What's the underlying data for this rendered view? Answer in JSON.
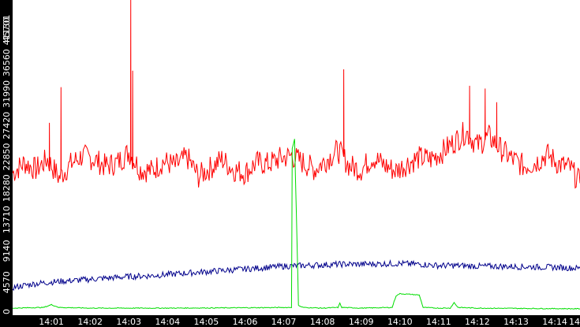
{
  "chart_data": {
    "type": "line",
    "title": "",
    "xlabel": "",
    "ylabel": "",
    "x_tick_labels": [
      "14:01",
      "14:02",
      "14:03",
      "14:04",
      "14:05",
      "14:06",
      "14:07",
      "14:08",
      "14:09",
      "14:10",
      "14:11",
      "14:12",
      "14:13",
      "14:14",
      "14"
    ],
    "y_tick_labels": [
      "0",
      "4570",
      "9140",
      "13710",
      "18280",
      "22850",
      "27420",
      "31990",
      "36560",
      "41130",
      "45701"
    ],
    "y_tick_values": [
      0,
      4570,
      9140,
      13710,
      18280,
      22850,
      27420,
      31990,
      36560,
      41130,
      45701
    ],
    "ylim": [
      0,
      45701
    ],
    "xlim": [
      0,
      14.65
    ],
    "grid": false,
    "legend": "none",
    "colors": {
      "red": "#ff0000",
      "blue": "#00008b",
      "green": "#00dd00",
      "axis_band": "#000000",
      "tick_text": "#ffffff"
    },
    "series": [
      {
        "color": "#ff0000",
        "x": [
          0,
          0.3,
          0.6,
          0.9,
          1.2,
          1.5,
          1.8,
          2.1,
          2.4,
          2.7,
          3.0,
          3.3,
          3.6,
          3.9,
          4.2,
          4.5,
          4.8,
          5.1,
          5.4,
          5.7,
          6.0,
          6.3,
          6.6,
          6.9,
          7.2,
          7.5,
          7.8,
          8.1,
          8.4,
          8.7,
          9.0,
          9.3,
          9.6,
          9.9,
          10.2,
          10.5,
          10.8,
          11.1,
          11.4,
          11.7,
          12.0,
          12.3,
          12.6,
          12.9,
          13.2,
          13.5,
          13.8,
          14.1,
          14.4,
          14.65
        ],
        "values": [
          20500,
          22000,
          21000,
          22500,
          19800,
          21800,
          23000,
          22500,
          21500,
          22000,
          23500,
          21000,
          20800,
          22200,
          21500,
          22800,
          20000,
          21200,
          22500,
          21000,
          20500,
          22000,
          21800,
          22600,
          23000,
          22000,
          21000,
          22400,
          23800,
          21500,
          21000,
          22800,
          21600,
          20800,
          21900,
          22700,
          22500,
          23600,
          25000,
          26500,
          24500,
          25800,
          24000,
          22500,
          21500,
          22000,
          23200,
          21800,
          21200,
          19000
        ],
        "spikes": [
          {
            "x": 0.95,
            "y": 27800
          },
          {
            "x": 1.25,
            "y": 33000
          },
          {
            "x": 3.05,
            "y": 46000
          },
          {
            "x": 3.1,
            "y": 35400
          },
          {
            "x": 8.55,
            "y": 35600
          },
          {
            "x": 11.8,
            "y": 33200
          },
          {
            "x": 12.2,
            "y": 32800
          },
          {
            "x": 12.5,
            "y": 30800
          }
        ]
      },
      {
        "color": "#00008b",
        "x": [
          0,
          0.5,
          1,
          1.5,
          2,
          2.5,
          3,
          3.5,
          4,
          4.5,
          5,
          5.5,
          6,
          6.5,
          7,
          7.5,
          8,
          8.5,
          9,
          9.5,
          10,
          10.5,
          11,
          11.5,
          12,
          12.5,
          13,
          13.5,
          14,
          14.65
        ],
        "values": [
          3800,
          4300,
          4600,
          4800,
          5000,
          5200,
          5400,
          5500,
          5700,
          5900,
          6100,
          6300,
          6500,
          6700,
          6900,
          7000,
          7100,
          7200,
          7200,
          7250,
          7300,
          7200,
          7000,
          7000,
          6900,
          6900,
          6850,
          6800,
          6750,
          6600
        ]
      },
      {
        "color": "#00dd00",
        "x": [
          0,
          0.8,
          1.0,
          1.2,
          2.0,
          4.0,
          6.0,
          7.2,
          7.22,
          7.28,
          7.35,
          7.38,
          7.45,
          7.5,
          8.0,
          8.4,
          8.45,
          8.5,
          9.0,
          9.8,
          9.9,
          10.0,
          10.3,
          10.5,
          10.6,
          11.0,
          11.3,
          11.4,
          11.5,
          12.0,
          14.65
        ],
        "values": [
          800,
          900,
          1300,
          900,
          800,
          800,
          850,
          900,
          24000,
          25400,
          9000,
          1200,
          1000,
          900,
          800,
          900,
          1500,
          900,
          800,
          900,
          2600,
          2900,
          2800,
          2700,
          900,
          800,
          800,
          1600,
          900,
          800,
          700
        ]
      }
    ]
  }
}
